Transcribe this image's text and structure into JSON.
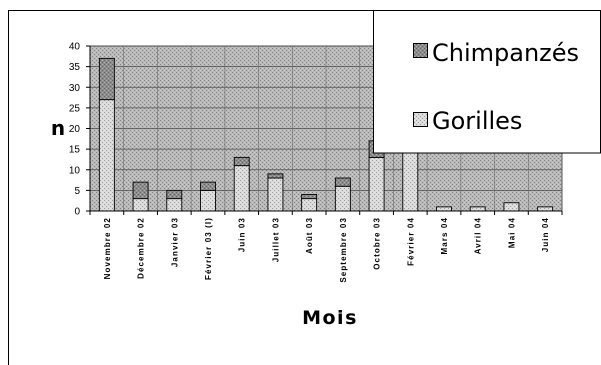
{
  "chart_data": {
    "type": "bar",
    "stacked": true,
    "categories": [
      "Novembre 02",
      "Décembre 02",
      "Janvier 03",
      "Février 03 (I)",
      "Juin 03",
      "Juillet 03",
      "Août 03",
      "Septembre 03",
      "Octobre 03",
      "Février 04",
      "Mars 04",
      "Avril 04",
      "Mai 04",
      "Juin 04"
    ],
    "series": [
      {
        "name": "Gorilles",
        "values": [
          27,
          3,
          3,
          5,
          11,
          8,
          3,
          6,
          13,
          15,
          1,
          1,
          2,
          1
        ],
        "color": "#dcdcdc"
      },
      {
        "name": "Chimpanzés",
        "values": [
          10,
          4,
          2,
          2,
          2,
          1,
          1,
          2,
          4,
          0,
          0,
          0,
          0,
          0
        ],
        "color": "#8c8c8c"
      }
    ],
    "xlabel": "Mois",
    "ylabel": "n",
    "ylim": [
      0,
      40
    ],
    "yticks": [
      0,
      5,
      10,
      15,
      20,
      25,
      30,
      35,
      40
    ],
    "grid": true,
    "legend": "top-right",
    "plot_background": "#b9b9b9"
  }
}
